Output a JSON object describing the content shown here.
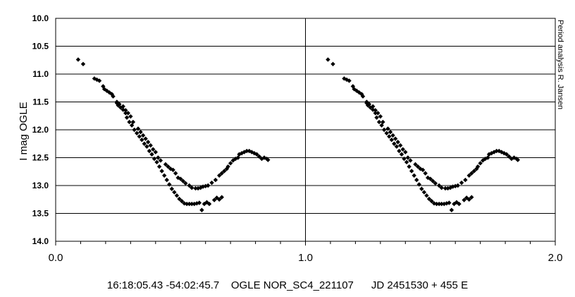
{
  "chart_data": {
    "type": "scatter",
    "ylabel": "I mag OGLE",
    "xlabel": "",
    "xlim": [
      0.0,
      2.0
    ],
    "ylim": [
      10.0,
      14.0
    ],
    "y_inverted": true,
    "x_ticks": [
      "0.0",
      "1.0",
      "2.0"
    ],
    "y_ticks": [
      "10.0",
      "10.5",
      "11.0",
      "11.5",
      "12.0",
      "12.5",
      "13.0",
      "13.5",
      "14.0"
    ],
    "grid": "horizontal",
    "credit": "Period analysis R. Jansen",
    "caption": "16:18:05.43 -54:02:45.7    OGLE NOR_SC4_221107      JD 2451530 + 455 E",
    "marker_color": "#000000",
    "phase_repeat_offset": 1.0,
    "points": [
      [
        0.09,
        10.74
      ],
      [
        0.11,
        10.82
      ],
      [
        0.155,
        11.08
      ],
      [
        0.165,
        11.1
      ],
      [
        0.175,
        11.12
      ],
      [
        0.19,
        11.22
      ],
      [
        0.195,
        11.27
      ],
      [
        0.205,
        11.3
      ],
      [
        0.215,
        11.33
      ],
      [
        0.225,
        11.36
      ],
      [
        0.23,
        11.4
      ],
      [
        0.245,
        11.52
      ],
      [
        0.25,
        11.56
      ],
      [
        0.26,
        11.6
      ],
      [
        0.27,
        11.64
      ],
      [
        0.28,
        11.7
      ],
      [
        0.285,
        11.78
      ],
      [
        0.295,
        11.86
      ],
      [
        0.305,
        11.92
      ],
      [
        0.315,
        12.0
      ],
      [
        0.325,
        12.06
      ],
      [
        0.335,
        12.12
      ],
      [
        0.345,
        12.18
      ],
      [
        0.355,
        12.25
      ],
      [
        0.365,
        12.3
      ],
      [
        0.375,
        12.38
      ],
      [
        0.385,
        12.44
      ],
      [
        0.395,
        12.52
      ],
      [
        0.405,
        12.58
      ],
      [
        0.415,
        12.66
      ],
      [
        0.425,
        12.74
      ],
      [
        0.435,
        12.82
      ],
      [
        0.445,
        12.9
      ],
      [
        0.455,
        12.98
      ],
      [
        0.465,
        13.06
      ],
      [
        0.475,
        13.12
      ],
      [
        0.485,
        13.18
      ],
      [
        0.495,
        13.24
      ],
      [
        0.505,
        13.28
      ],
      [
        0.515,
        13.32
      ],
      [
        0.525,
        13.33
      ],
      [
        0.535,
        13.33
      ],
      [
        0.545,
        13.33
      ],
      [
        0.555,
        13.33
      ],
      [
        0.565,
        13.32
      ],
      [
        0.575,
        13.31
      ],
      [
        0.585,
        13.44
      ],
      [
        0.595,
        13.33
      ],
      [
        0.605,
        13.3
      ],
      [
        0.615,
        13.33
      ],
      [
        0.635,
        13.26
      ],
      [
        0.645,
        13.22
      ],
      [
        0.655,
        13.25
      ],
      [
        0.665,
        13.21
      ],
      [
        0.245,
        11.5
      ],
      [
        0.255,
        11.54
      ],
      [
        0.27,
        11.58
      ],
      [
        0.28,
        11.65
      ],
      [
        0.29,
        11.7
      ],
      [
        0.3,
        11.76
      ],
      [
        0.31,
        11.86
      ],
      [
        0.33,
        11.98
      ],
      [
        0.34,
        12.04
      ],
      [
        0.35,
        12.1
      ],
      [
        0.36,
        12.16
      ],
      [
        0.37,
        12.22
      ],
      [
        0.38,
        12.28
      ],
      [
        0.39,
        12.35
      ],
      [
        0.4,
        12.4
      ],
      [
        0.41,
        12.5
      ],
      [
        0.42,
        12.55
      ],
      [
        0.44,
        12.62
      ],
      [
        0.45,
        12.66
      ],
      [
        0.46,
        12.7
      ],
      [
        0.47,
        12.72
      ],
      [
        0.48,
        12.78
      ],
      [
        0.49,
        12.86
      ],
      [
        0.5,
        12.88
      ],
      [
        0.51,
        12.92
      ],
      [
        0.52,
        12.96
      ],
      [
        0.535,
        13.0
      ],
      [
        0.545,
        13.04
      ],
      [
        0.56,
        13.05
      ],
      [
        0.57,
        13.05
      ],
      [
        0.58,
        13.04
      ],
      [
        0.59,
        13.02
      ],
      [
        0.6,
        13.01
      ],
      [
        0.61,
        13.0
      ],
      [
        0.625,
        12.95
      ],
      [
        0.64,
        12.9
      ],
      [
        0.655,
        12.82
      ],
      [
        0.665,
        12.78
      ],
      [
        0.675,
        12.74
      ],
      [
        0.685,
        12.7
      ],
      [
        0.69,
        12.66
      ],
      [
        0.7,
        12.6
      ],
      [
        0.71,
        12.55
      ],
      [
        0.72,
        12.52
      ],
      [
        0.73,
        12.5
      ],
      [
        0.735,
        12.44
      ],
      [
        0.745,
        12.42
      ],
      [
        0.755,
        12.4
      ],
      [
        0.765,
        12.38
      ],
      [
        0.775,
        12.38
      ],
      [
        0.785,
        12.4
      ],
      [
        0.795,
        12.42
      ],
      [
        0.805,
        12.44
      ],
      [
        0.815,
        12.48
      ],
      [
        0.825,
        12.52
      ],
      [
        0.835,
        12.5
      ],
      [
        0.845,
        12.52
      ],
      [
        0.85,
        12.54
      ]
    ]
  }
}
